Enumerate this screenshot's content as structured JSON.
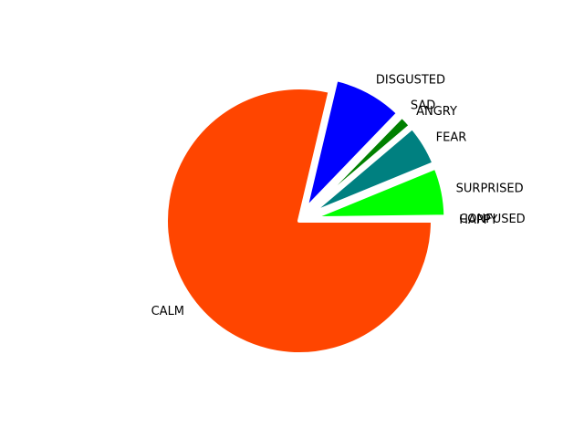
{
  "chart_data": {
    "type": "pie",
    "title": "",
    "slices": [
      {
        "label": "HAPPY",
        "value": 0.1,
        "color": "#FFFF00",
        "explode": 0.1
      },
      {
        "label": "CONFUSED",
        "value": 0.1,
        "color": "#A52A2A",
        "explode": 0.1
      },
      {
        "label": "SURPRISED",
        "value": 6.0,
        "color": "#00FF00",
        "explode": 0.1
      },
      {
        "label": "FEAR",
        "value": 5.0,
        "color": "#008080",
        "explode": 0.1
      },
      {
        "label": "ANGRY",
        "value": 1.5,
        "color": "#008000",
        "explode": 0.1
      },
      {
        "label": "SAD",
        "value": 0.1,
        "color": "#800080",
        "explode": 0.1
      },
      {
        "label": "DISGUSTED",
        "value": 8.5,
        "color": "#0000FF",
        "explode": 0.1
      },
      {
        "label": "CALM",
        "value": 78.7,
        "color": "#FF4500",
        "explode": 0.0
      }
    ],
    "start_angle_deg": 0,
    "direction": "counterclockwise",
    "edge_color": "#FFFFFF",
    "legend": "none"
  }
}
